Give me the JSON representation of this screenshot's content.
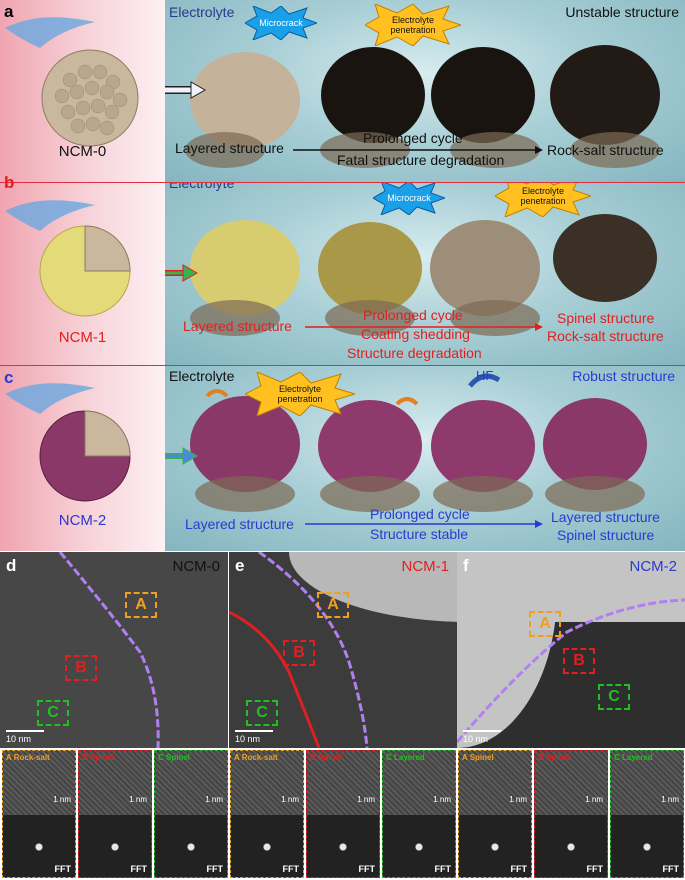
{
  "colors": {
    "orange": "#f0a020",
    "red": "#e02020",
    "green": "#20c020",
    "blue": "#2a3ad0",
    "purple": "#b060f0"
  },
  "panel_a": {
    "letter": "a",
    "electrolyte": "Electrolyte",
    "microcrack": "Microcrack",
    "penetration": "Electrolyte penetration",
    "status": "Unstable structure",
    "particle": "NCM-0",
    "layered": "Layered structure",
    "cycle": "Prolonged cycle",
    "degradation": "Fatal structure degradation",
    "rocksalt": "Rock-salt structure"
  },
  "panel_b": {
    "letter": "b",
    "electrolyte": "Electrolyte",
    "microcrack": "Microcrack",
    "penetration": "Electrolyte penetration",
    "particle": "NCM-1",
    "layered": "Layered structure",
    "cycle": "Prolonged cycle",
    "shedding": "Coating shedding",
    "degradation": "Structure degradation",
    "spinel": "Spinel structure",
    "rocksalt": "Rock-salt structure"
  },
  "panel_c": {
    "letter": "c",
    "electrolyte": "Electrolyte",
    "penetration": "Electrolyte penetration",
    "hf": "HF",
    "status": "Robust structure",
    "particle": "NCM-2",
    "layered": "Layered structure",
    "cycle": "Prolonged cycle",
    "stable": "Structure stable",
    "layered2": "Layered structure",
    "spinel": "Spinel structure"
  },
  "tem": [
    {
      "letter": "d",
      "name": "NCM-0",
      "name_color": "#111111",
      "scale": "10 nm",
      "regions": [
        "A",
        "B",
        "C"
      ]
    },
    {
      "letter": "e",
      "name": "NCM-1",
      "name_color": "#e02020",
      "scale": "10 nm",
      "regions": [
        "A",
        "B",
        "C"
      ]
    },
    {
      "letter": "f",
      "name": "NCM-2",
      "name_color": "#2a3ad0",
      "scale": "10 nm",
      "regions": [
        "A",
        "B",
        "C"
      ]
    }
  ],
  "subpanels": [
    {
      "caption": "A  Rock-salt",
      "scale": "1 nm",
      "fft": "FFT"
    },
    {
      "caption": "B  Spinel",
      "scale": "1 nm",
      "fft": "FFT"
    },
    {
      "caption": "C  Spinel",
      "scale": "1 nm",
      "fft": "FFT"
    },
    {
      "caption": "A  Rock-salt",
      "scale": "1 nm",
      "fft": "FFT"
    },
    {
      "caption": "B  Spinel",
      "scale": "1 nm",
      "fft": "FFT"
    },
    {
      "caption": "C  Layered",
      "scale": "1 nm",
      "fft": "FFT"
    },
    {
      "caption": "A  Spinel",
      "scale": "1 nm",
      "fft": "FFT"
    },
    {
      "caption": "B  Spinel",
      "scale": "1 nm",
      "fft": "FFT"
    },
    {
      "caption": "C  Layered",
      "scale": "1 nm",
      "fft": "FFT"
    }
  ]
}
